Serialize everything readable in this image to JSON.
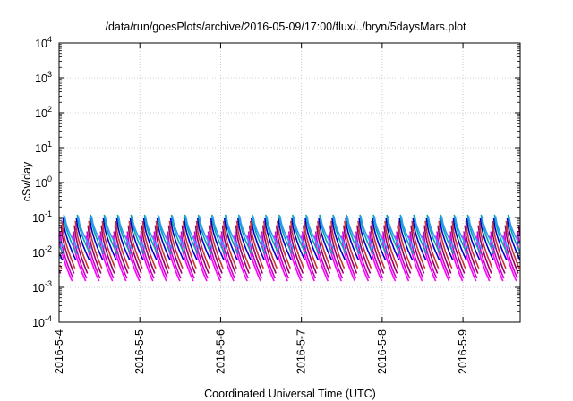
{
  "chart_data": {
    "type": "line",
    "title": "/data/run/goesPlots/archive/2016-05-09/17:00/flux/../bryn/5daysMars.plot",
    "xlabel": "Coordinated Universal Time (UTC)",
    "ylabel": "cSv/day",
    "x_tick_labels": [
      "2016-5-4",
      "2016-5-5",
      "2016-5-6",
      "2016-5-7",
      "2016-5-8",
      "2016-5-9"
    ],
    "xlim": [
      "2016-05-04",
      "2016-05-09 17:00"
    ],
    "y_scale": "log",
    "ylim": [
      0.0001,
      10000
    ],
    "y_ticks": [
      {
        "base": "10",
        "exp": "4"
      },
      {
        "base": "10",
        "exp": "3"
      },
      {
        "base": "10",
        "exp": "2"
      },
      {
        "base": "10",
        "exp": "1"
      },
      {
        "base": "10",
        "exp": "0"
      },
      {
        "base": "10",
        "exp": "-1"
      },
      {
        "base": "10",
        "exp": "-2"
      },
      {
        "base": "10",
        "exp": "-3"
      },
      {
        "base": "10",
        "exp": "-4"
      }
    ],
    "grid": true,
    "sawtooth_period_hours": 4,
    "series_colors": [
      "#ff00ff",
      "#cc00cc",
      "#990066",
      "#cc3333",
      "#0000cc",
      "#00a8a8",
      "#3399ff"
    ],
    "series_range_low": [
      0.0015,
      0.0018,
      0.0025,
      0.0035,
      0.006,
      0.009,
      0.013
    ],
    "series_range_high": [
      0.03,
      0.04,
      0.06,
      0.08,
      0.1,
      0.12,
      0.11
    ]
  }
}
